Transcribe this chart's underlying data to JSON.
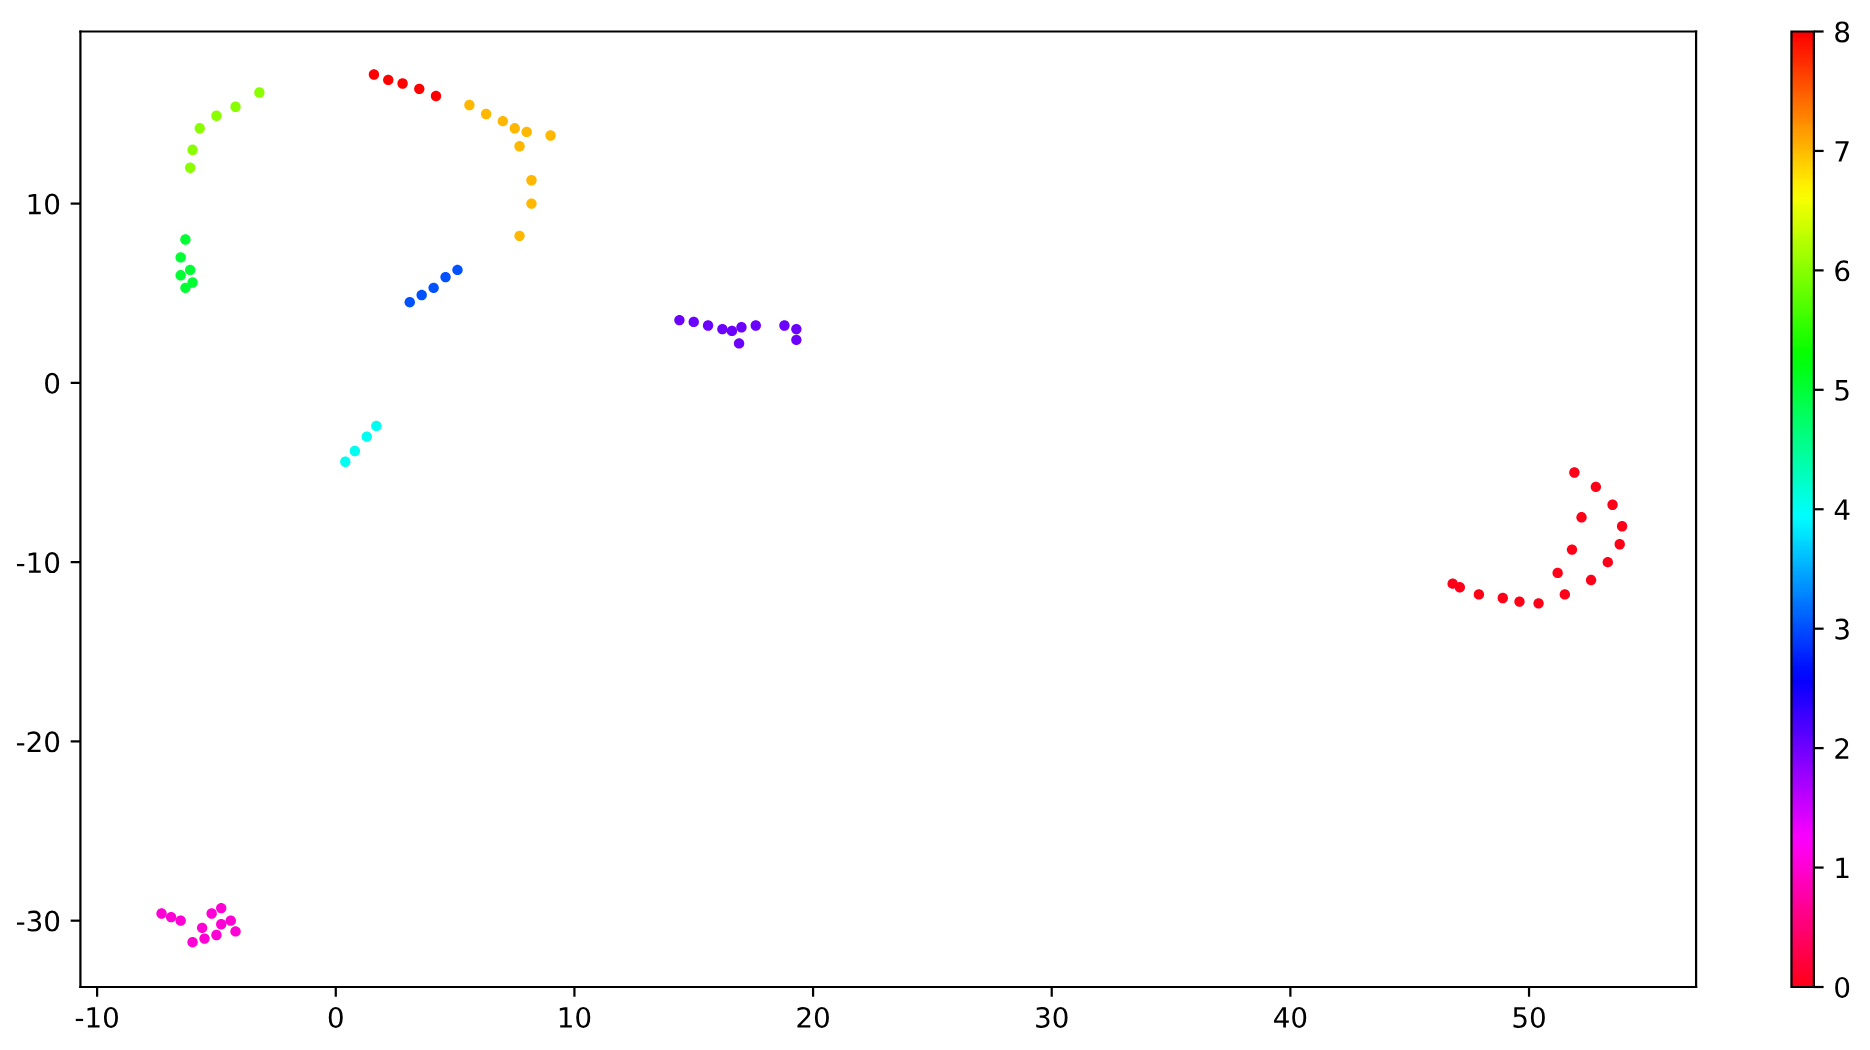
{
  "chart_data": {
    "type": "scatter",
    "x": [
      -7.3,
      -6.9,
      -6.5,
      -5.6,
      -5.2,
      -4.8,
      -4.4,
      -4.2,
      -5.0,
      -5.5,
      -6.0,
      -4.8,
      14.4,
      15.0,
      15.6,
      16.2,
      16.6,
      17.0,
      17.6,
      16.9,
      18.8,
      19.3,
      19.3,
      3.1,
      3.6,
      4.1,
      4.6,
      5.1,
      0.4,
      0.8,
      1.3,
      1.7,
      -6.3,
      -6.5,
      -6.5,
      -6.1,
      -6.3,
      -6.0,
      -6.1,
      -6.0,
      -5.7,
      -5.0,
      -4.2,
      -3.2,
      5.6,
      6.3,
      7.0,
      7.5,
      8.0,
      9.0,
      7.7,
      8.2,
      8.2,
      7.7,
      1.6,
      2.2,
      2.8,
      3.5,
      4.2,
      51.9,
      52.8,
      53.5,
      53.9,
      53.8,
      53.3,
      52.6,
      51.5,
      50.4,
      49.6,
      52.2,
      51.8,
      51.2,
      48.9,
      47.9,
      46.8,
      47.1
    ],
    "values": [
      -29.6,
      -29.8,
      -30.0,
      -30.4,
      -29.6,
      -29.3,
      -30.0,
      -30.6,
      -30.8,
      -31.0,
      -31.2,
      -30.2,
      3.5,
      3.4,
      3.2,
      3.0,
      2.9,
      3.1,
      3.2,
      2.2,
      3.2,
      3.0,
      2.4,
      4.5,
      4.9,
      5.3,
      5.9,
      6.3,
      -4.4,
      -3.8,
      -3.0,
      -2.4,
      8.0,
      7.0,
      6.0,
      6.3,
      5.3,
      5.6,
      12.0,
      13.0,
      14.2,
      14.9,
      15.4,
      16.2,
      15.5,
      15.0,
      14.6,
      14.2,
      14.0,
      13.8,
      13.2,
      11.3,
      10.0,
      8.2,
      17.2,
      16.9,
      16.7,
      16.4,
      16.0,
      -5.0,
      -5.8,
      -6.8,
      -8.0,
      -9.0,
      -10.0,
      -11.0,
      -11.8,
      -12.3,
      -12.2,
      -7.5,
      -9.3,
      -10.6,
      -12.0,
      -11.8,
      -11.2,
      -11.4
    ],
    "cvalues": [
      1,
      1,
      1,
      1,
      1,
      1,
      1,
      1,
      1,
      1,
      1,
      1,
      2,
      2,
      2,
      2,
      2,
      2,
      2,
      2,
      2,
      2,
      2,
      3,
      3,
      3,
      3,
      3,
      4,
      4,
      4,
      4,
      5,
      5,
      5,
      5,
      5,
      5,
      6,
      6,
      6,
      6,
      6,
      6,
      7,
      7,
      7,
      7,
      7,
      7,
      7,
      7,
      7,
      7,
      8,
      8,
      8,
      8,
      8,
      0,
      0,
      0,
      0,
      0,
      0,
      0,
      0,
      0,
      0,
      0,
      0,
      0,
      0,
      0,
      0,
      0
    ],
    "xlim": [
      -10.7,
      57.0
    ],
    "ylim": [
      -33.7,
      19.6
    ],
    "xticks": [
      -10,
      0,
      10,
      20,
      30,
      40,
      50
    ],
    "yticks": [
      -30,
      -20,
      -10,
      0,
      10
    ],
    "clim": [
      0,
      8
    ],
    "cticks": [
      0,
      1,
      2,
      3,
      4,
      5,
      6,
      7,
      8
    ],
    "marker": "circle",
    "grid": false
  }
}
